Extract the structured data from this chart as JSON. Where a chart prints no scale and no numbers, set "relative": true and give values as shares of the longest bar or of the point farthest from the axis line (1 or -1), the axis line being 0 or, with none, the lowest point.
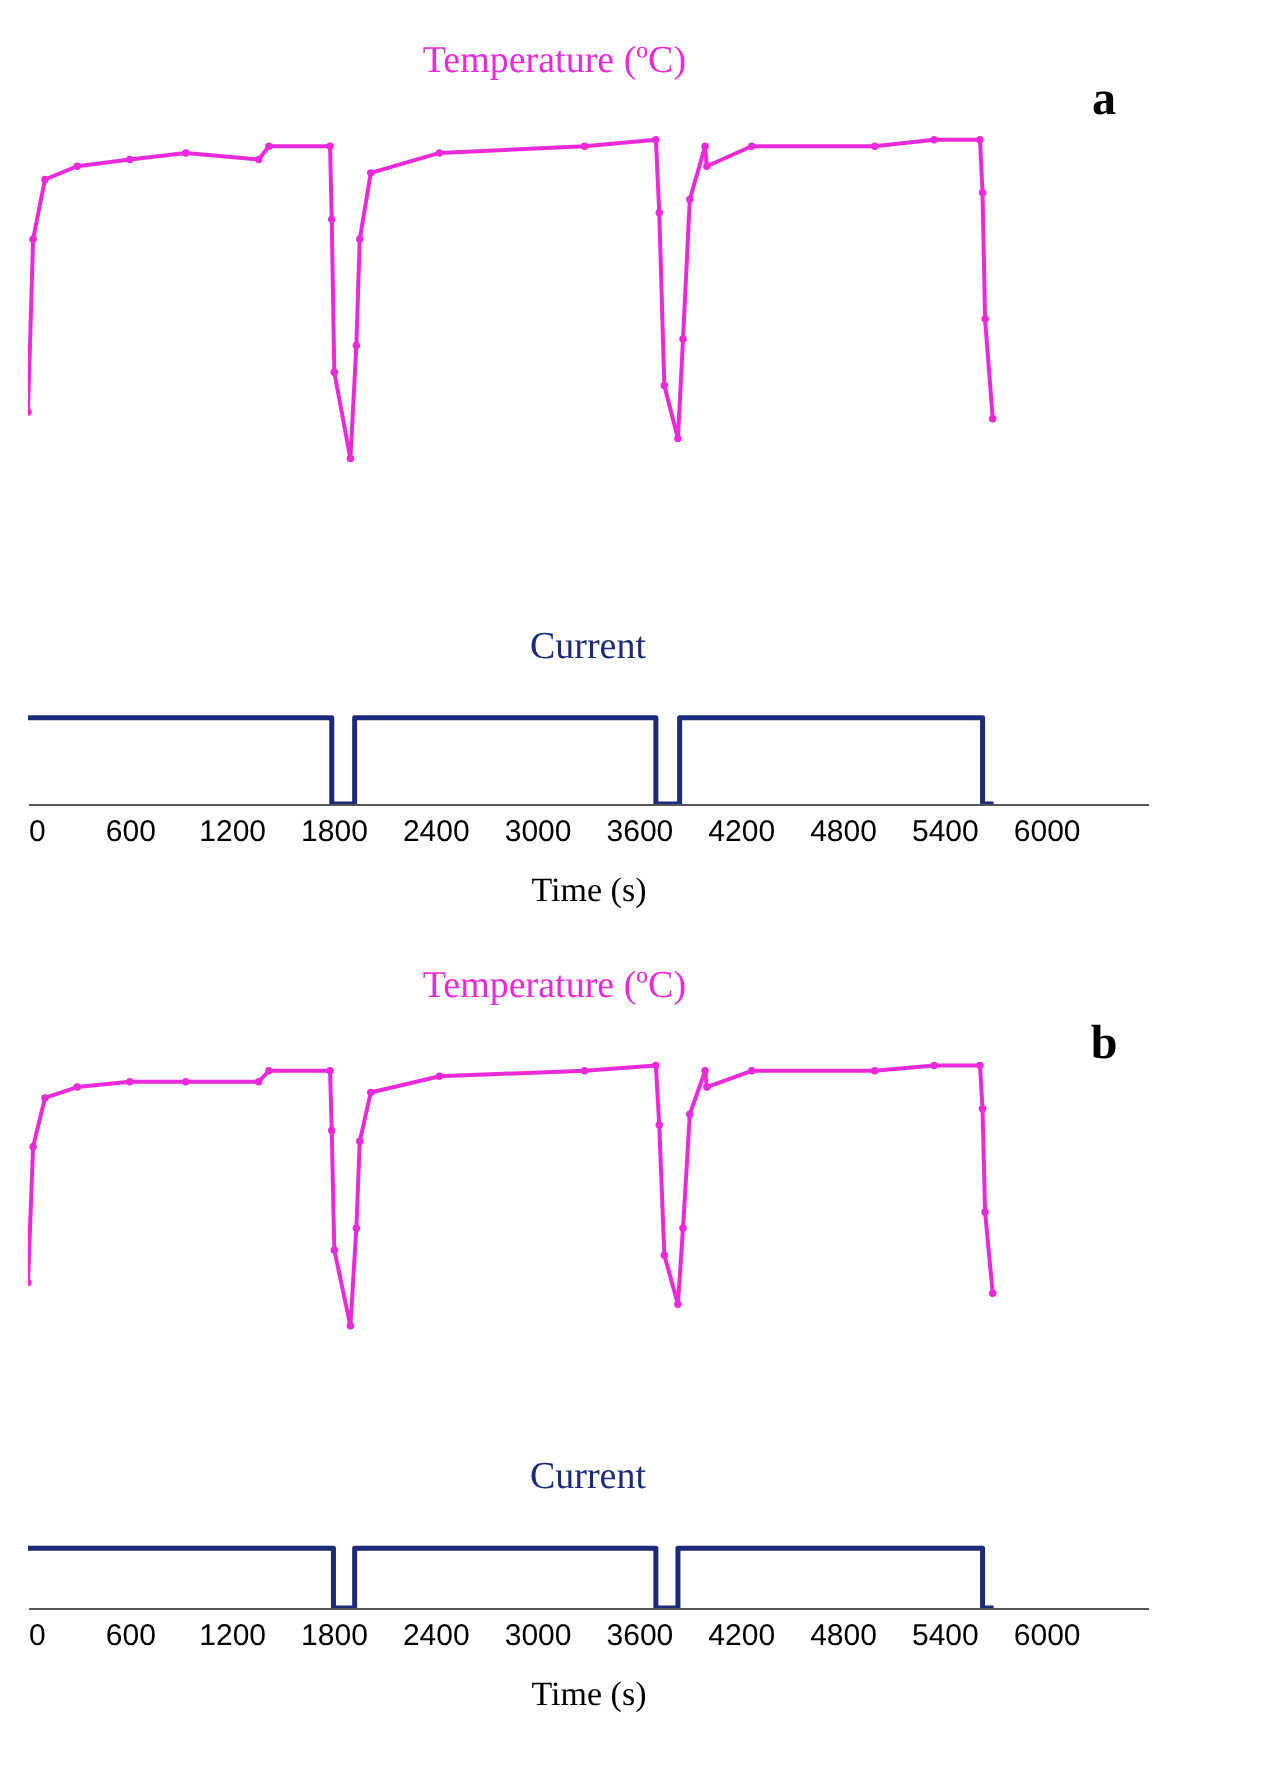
{
  "chart_data": [
    {
      "type": "line",
      "title": "a",
      "xlabel": "Time (s)",
      "relative": true,
      "xlim": [
        0,
        6600
      ],
      "xticks": [
        0,
        600,
        1200,
        1800,
        2400,
        3000,
        3600,
        4200,
        4800,
        5400,
        6000
      ],
      "grid": false,
      "series": [
        {
          "name": "Temperature (ºC)",
          "color": "#ea2ad8",
          "marker": "circle",
          "x": [
            0,
            30,
            100,
            290,
            600,
            930,
            1360,
            1420,
            1780,
            1790,
            1805,
            1900,
            1935,
            1955,
            2020,
            2425,
            3280,
            3700,
            3720,
            3750,
            3830,
            3860,
            3900,
            3990,
            4000,
            4265,
            4990,
            5340,
            5610,
            5625,
            5640,
            5685
          ],
          "values": [
            0.59,
            0.85,
            0.94,
            0.96,
            0.97,
            0.98,
            0.97,
            0.99,
            0.99,
            0.88,
            0.65,
            0.52,
            0.69,
            0.85,
            0.95,
            0.98,
            0.99,
            1.0,
            0.89,
            0.63,
            0.55,
            0.7,
            0.91,
            0.99,
            0.96,
            0.99,
            0.99,
            1.0,
            1.0,
            0.92,
            0.73,
            0.58
          ]
        },
        {
          "name": "Current",
          "color": "#1c2a7a",
          "marker": "none",
          "x": [
            0,
            1790,
            1790,
            1925,
            1925,
            3700,
            3700,
            3840,
            3840,
            5625,
            5625,
            5690
          ],
          "values": [
            0.13,
            0.13,
            0,
            0,
            0.13,
            0.13,
            0,
            0,
            0.13,
            0.13,
            0,
            0
          ]
        }
      ]
    },
    {
      "type": "line",
      "title": "b",
      "xlabel": "Time (s)",
      "relative": true,
      "xlim": [
        0,
        6600
      ],
      "xticks": [
        0,
        600,
        1200,
        1800,
        2400,
        3000,
        3600,
        4200,
        4800,
        5400,
        6000
      ],
      "grid": false,
      "series": [
        {
          "name": "Temperature (ºC)",
          "color": "#ea2ad8",
          "marker": "circle",
          "x": [
            0,
            30,
            100,
            290,
            600,
            930,
            1360,
            1420,
            1780,
            1790,
            1805,
            1900,
            1935,
            1955,
            2020,
            2425,
            3280,
            3700,
            3720,
            3750,
            3830,
            3860,
            3900,
            3990,
            4000,
            4265,
            4990,
            5340,
            5610,
            5625,
            5640,
            5685
          ],
          "values": [
            0.6,
            0.85,
            0.94,
            0.96,
            0.97,
            0.97,
            0.97,
            0.99,
            0.99,
            0.88,
            0.66,
            0.52,
            0.7,
            0.86,
            0.95,
            0.98,
            0.99,
            1.0,
            0.89,
            0.65,
            0.56,
            0.7,
            0.91,
            0.99,
            0.96,
            0.99,
            0.99,
            1.0,
            1.0,
            0.92,
            0.73,
            0.58
          ]
        },
        {
          "name": "Current",
          "color": "#1c2a7a",
          "marker": "none",
          "x": [
            0,
            1800,
            1800,
            1925,
            1925,
            3700,
            3700,
            3830,
            3830,
            5625,
            5625,
            5690
          ],
          "values": [
            0.11,
            0.11,
            0,
            0,
            0.11,
            0.11,
            0,
            0,
            0.11,
            0.11,
            0,
            0
          ]
        }
      ]
    }
  ]
}
